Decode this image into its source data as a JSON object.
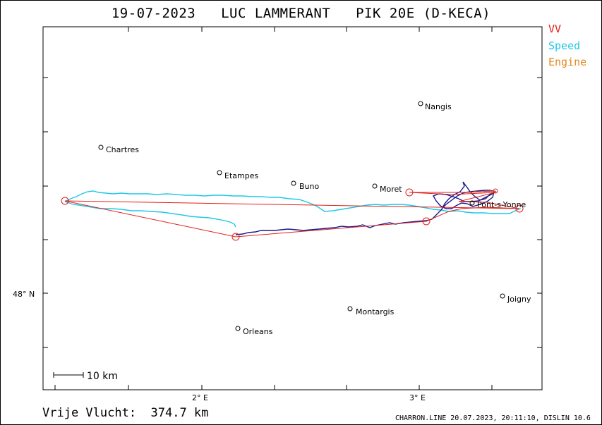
{
  "header": {
    "title": "19-07-2023   LUC LAMMERANT   PIK 20E (D-KECA)"
  },
  "legend": {
    "items": [
      {
        "label": "VV",
        "color": "#e0201c"
      },
      {
        "label": "Speed",
        "color": "#1ec8e8"
      },
      {
        "label": "Engine",
        "color": "#e08a1c"
      }
    ]
  },
  "map": {
    "cities": [
      {
        "name": "Nangis"
      },
      {
        "name": "Chartres"
      },
      {
        "name": "Etampes"
      },
      {
        "name": "Buno"
      },
      {
        "name": "Moret"
      },
      {
        "name": "Pont-s-Yonne"
      },
      {
        "name": "Joigny"
      },
      {
        "name": "Montargis"
      },
      {
        "name": "Orleans"
      }
    ],
    "axis": {
      "lat_label": "48° N",
      "lon_labels": [
        "2° E",
        "3° E"
      ]
    },
    "scale_label": "10 km",
    "colors": {
      "task": "#e0201c",
      "track": "#1a1a8c",
      "speed": "#1ec8e8",
      "engine": "#e08a1c"
    }
  },
  "footer": {
    "distance_label": "Vrije Vlucht:  374.7 km",
    "credits": "CHARRON.LINE 20.07.2023, 20:11:10, DISLIN 10.6"
  }
}
